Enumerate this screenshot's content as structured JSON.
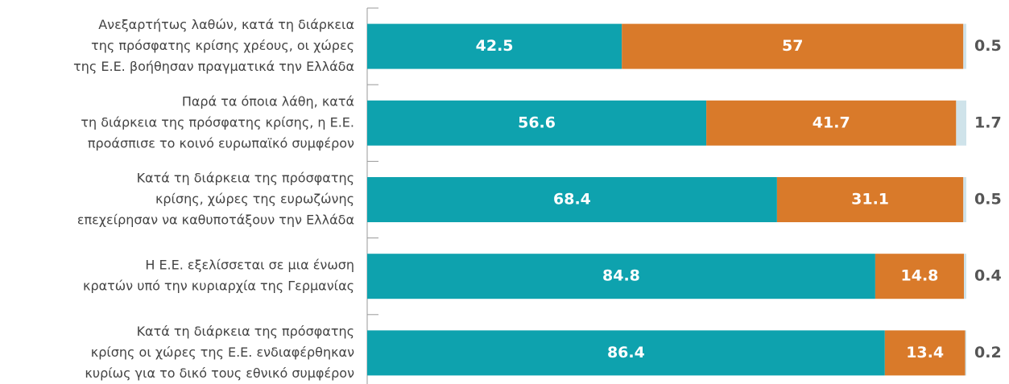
{
  "chart_data": {
    "type": "stacked-bar-horizontal",
    "categories": [
      [
        "Ανεξαρτήτως λαθών, κατά τη διάρκεια",
        "της πρόσφατης κρίσης χρέους, οι χώρες",
        "της Ε.Ε. βοήθησαν πραγματικά την Ελλάδα"
      ],
      [
        "Παρά τα όποια λάθη, κατά",
        "τη διάρκεια της πρόσφατης κρίσης, η Ε.Ε.",
        "προάσπισε το κοινό ευρωπαϊκό συμφέρον"
      ],
      [
        "Κατά τη διάρκεια της πρόσφατης",
        "κρίσης, χώρες της ευρωζώνης",
        "επεχείρησαν να καθυποτάξουν την Ελλάδα"
      ],
      [
        "Η Ε.Ε. εξελίσσεται σε μια ένωση",
        "κρατών υπό την κυριαρχία της Γερμανίας"
      ],
      [
        "Κατά τη διάρκεια της πρόσφατης",
        "κρίσης οι χώρες της Ε.Ε. ενδιαφέρθηκαν",
        "κυρίως για το δικό τους εθνικό συμφέρον"
      ]
    ],
    "series": [
      {
        "color": "#0ea2ae",
        "values": [
          42.5,
          56.6,
          68.4,
          84.8,
          86.4
        ]
      },
      {
        "color": "#d97a2a",
        "values": [
          57,
          41.7,
          31.1,
          14.8,
          13.4
        ]
      },
      {
        "color": "#cfe3ea",
        "values": [
          0.5,
          1.7,
          0.5,
          0.4,
          0.2
        ]
      }
    ],
    "xlim": [
      0,
      100
    ]
  }
}
